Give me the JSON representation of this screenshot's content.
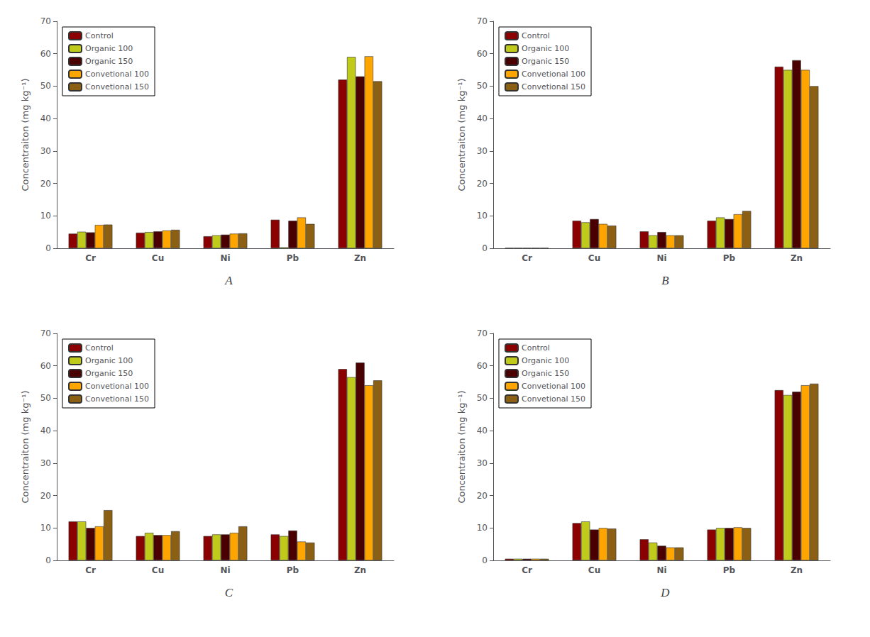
{
  "chart_data": [
    {
      "type": "bar",
      "title": "A",
      "ylabel": "Concentraiton (mg kg⁻¹)",
      "categories": [
        "Cr",
        "Cu",
        "Ni",
        "Pb",
        "Zn"
      ],
      "series": [
        {
          "name": "Control",
          "color": "#8B0000",
          "values": [
            4.5,
            4.8,
            3.7,
            8.8,
            52.0
          ]
        },
        {
          "name": "Organic 100",
          "color": "#BFCA1A",
          "values": [
            5.1,
            5.0,
            4.0,
            0.3,
            59.0
          ]
        },
        {
          "name": "Organic 150",
          "color": "#4A0000",
          "values": [
            4.9,
            5.2,
            4.2,
            8.5,
            53.0
          ]
        },
        {
          "name": "Convetional 100",
          "color": "#FFA500",
          "values": [
            7.2,
            5.5,
            4.5,
            9.5,
            59.2
          ]
        },
        {
          "name": "Convetional 150",
          "color": "#8B6014",
          "values": [
            7.3,
            5.7,
            4.6,
            7.5,
            51.5
          ]
        }
      ],
      "ylim": [
        0,
        70
      ],
      "yticks": [
        0,
        10,
        20,
        30,
        40,
        50,
        60,
        70
      ],
      "grid": false,
      "legend": "upper left"
    },
    {
      "type": "bar",
      "title": "B",
      "ylabel": "Concentraiton (mg kg⁻¹)",
      "categories": [
        "Cr",
        "Cu",
        "Ni",
        "Pb",
        "Zn"
      ],
      "series": [
        {
          "name": "Control",
          "color": "#8B0000",
          "values": [
            0.1,
            8.5,
            5.2,
            8.5,
            56.0
          ]
        },
        {
          "name": "Organic 100",
          "color": "#BFCA1A",
          "values": [
            0.1,
            8.0,
            4.0,
            9.5,
            55.0
          ]
        },
        {
          "name": "Organic 150",
          "color": "#4A0000",
          "values": [
            0.1,
            9.0,
            5.0,
            9.0,
            58.0
          ]
        },
        {
          "name": "Convetional 100",
          "color": "#FFA500",
          "values": [
            0.1,
            7.5,
            4.0,
            10.5,
            55.0
          ]
        },
        {
          "name": "Convetional 150",
          "color": "#8B6014",
          "values": [
            0.1,
            7.0,
            4.0,
            11.5,
            50.0
          ]
        }
      ],
      "ylim": [
        0,
        70
      ],
      "yticks": [
        0,
        10,
        20,
        30,
        40,
        50,
        60,
        70
      ],
      "grid": false,
      "legend": "upper left"
    },
    {
      "type": "bar",
      "title": "C",
      "ylabel": "Concentraiton (mg kg⁻¹)",
      "categories": [
        "Cr",
        "Cu",
        "Ni",
        "Pb",
        "Zn"
      ],
      "series": [
        {
          "name": "Control",
          "color": "#8B0000",
          "values": [
            12.0,
            7.5,
            7.5,
            8.0,
            59.0
          ]
        },
        {
          "name": "Organic 100",
          "color": "#BFCA1A",
          "values": [
            12.0,
            8.5,
            8.0,
            7.5,
            56.5
          ]
        },
        {
          "name": "Organic 150",
          "color": "#4A0000",
          "values": [
            10.0,
            7.8,
            8.0,
            9.2,
            61.0
          ]
        },
        {
          "name": "Convetional 100",
          "color": "#FFA500",
          "values": [
            10.5,
            7.8,
            8.5,
            5.8,
            54.0
          ]
        },
        {
          "name": "Convetional 150",
          "color": "#8B6014",
          "values": [
            15.5,
            9.0,
            10.5,
            5.5,
            55.5
          ]
        }
      ],
      "ylim": [
        0,
        70
      ],
      "yticks": [
        0,
        10,
        20,
        30,
        40,
        50,
        60,
        70
      ],
      "grid": false,
      "legend": "upper left"
    },
    {
      "type": "bar",
      "title": "D",
      "ylabel": "Concentraiton (mg kg⁻¹)",
      "categories": [
        "Cr",
        "Cu",
        "Ni",
        "Pb",
        "Zn"
      ],
      "series": [
        {
          "name": "Control",
          "color": "#8B0000",
          "values": [
            0.5,
            11.5,
            6.5,
            9.5,
            52.5
          ]
        },
        {
          "name": "Organic 100",
          "color": "#BFCA1A",
          "values": [
            0.5,
            12.0,
            5.5,
            10.0,
            51.0
          ]
        },
        {
          "name": "Organic 150",
          "color": "#4A0000",
          "values": [
            0.5,
            9.5,
            4.5,
            10.0,
            52.0
          ]
        },
        {
          "name": "Convetional 100",
          "color": "#FFA500",
          "values": [
            0.5,
            10.0,
            4.0,
            10.2,
            54.0
          ]
        },
        {
          "name": "Convetional 150",
          "color": "#8B6014",
          "values": [
            0.5,
            9.8,
            4.0,
            10.0,
            54.5
          ]
        }
      ],
      "ylim": [
        0,
        70
      ],
      "yticks": [
        0,
        10,
        20,
        30,
        40,
        50,
        60,
        70
      ],
      "grid": false,
      "legend": "upper left"
    }
  ]
}
